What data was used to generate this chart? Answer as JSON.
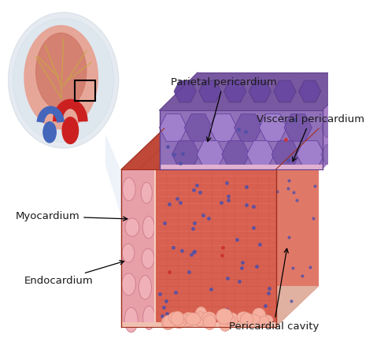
{
  "background_color": "#ffffff",
  "labels": {
    "parietal_pericardium": "Parietal pericardium",
    "visceral_pericardium": "Visceral pericardium",
    "myocardium": "Myocardium",
    "endocardium": "Endocardium",
    "pericardial_cavity": "Pericardial cavity"
  },
  "colors": {
    "myo_front": "#d96050",
    "myo_top": "#c05040",
    "myo_side_right": "#e07060",
    "endo_left": "#f0a0a0",
    "endo_left_cell": "#e89090",
    "endo_bottom": "#f5b0a0",
    "separator_pink": "#f0c0b0",
    "pp_front": "#9070b0",
    "pp_top": "#7858a0",
    "pp_side": "#a080c0",
    "pp_dark": "#604880",
    "vp_thin": "#d090c0",
    "dot_blue": "#5050aa",
    "dot_red": "#cc3333",
    "text_color": "#1a1a1a",
    "zoom_light": "#dde8f4"
  },
  "font_size": 9.5
}
